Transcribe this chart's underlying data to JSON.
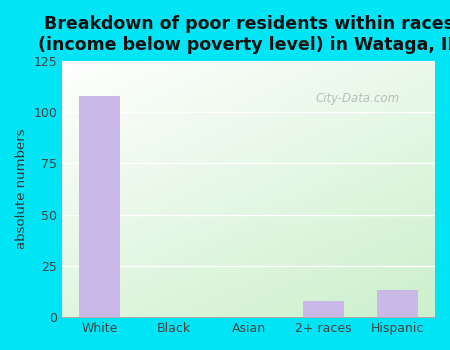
{
  "categories": [
    "White",
    "Black",
    "Asian",
    "2+ races",
    "Hispanic"
  ],
  "values": [
    108,
    0,
    0,
    8,
    13
  ],
  "bar_color": "#c9b8e8",
  "title_line1": "Breakdown of poor residents within races",
  "title_line2": "(income below poverty level) in Wataga, IL",
  "ylabel": "absolute numbers",
  "ylim": [
    0,
    125
  ],
  "yticks": [
    0,
    25,
    50,
    75,
    100,
    125
  ],
  "bg_outer": "#00e5f5",
  "watermark": "City-Data.com",
  "title_fontsize": 12.5,
  "ylabel_fontsize": 9.5,
  "tick_fontsize": 9,
  "bg_tl": [
    0.94,
    1.0,
    0.94
  ],
  "bg_tr": [
    0.88,
    0.98,
    0.88
  ],
  "bg_bl": [
    0.82,
    0.95,
    0.82
  ],
  "bg_br": [
    0.78,
    0.92,
    0.78
  ]
}
